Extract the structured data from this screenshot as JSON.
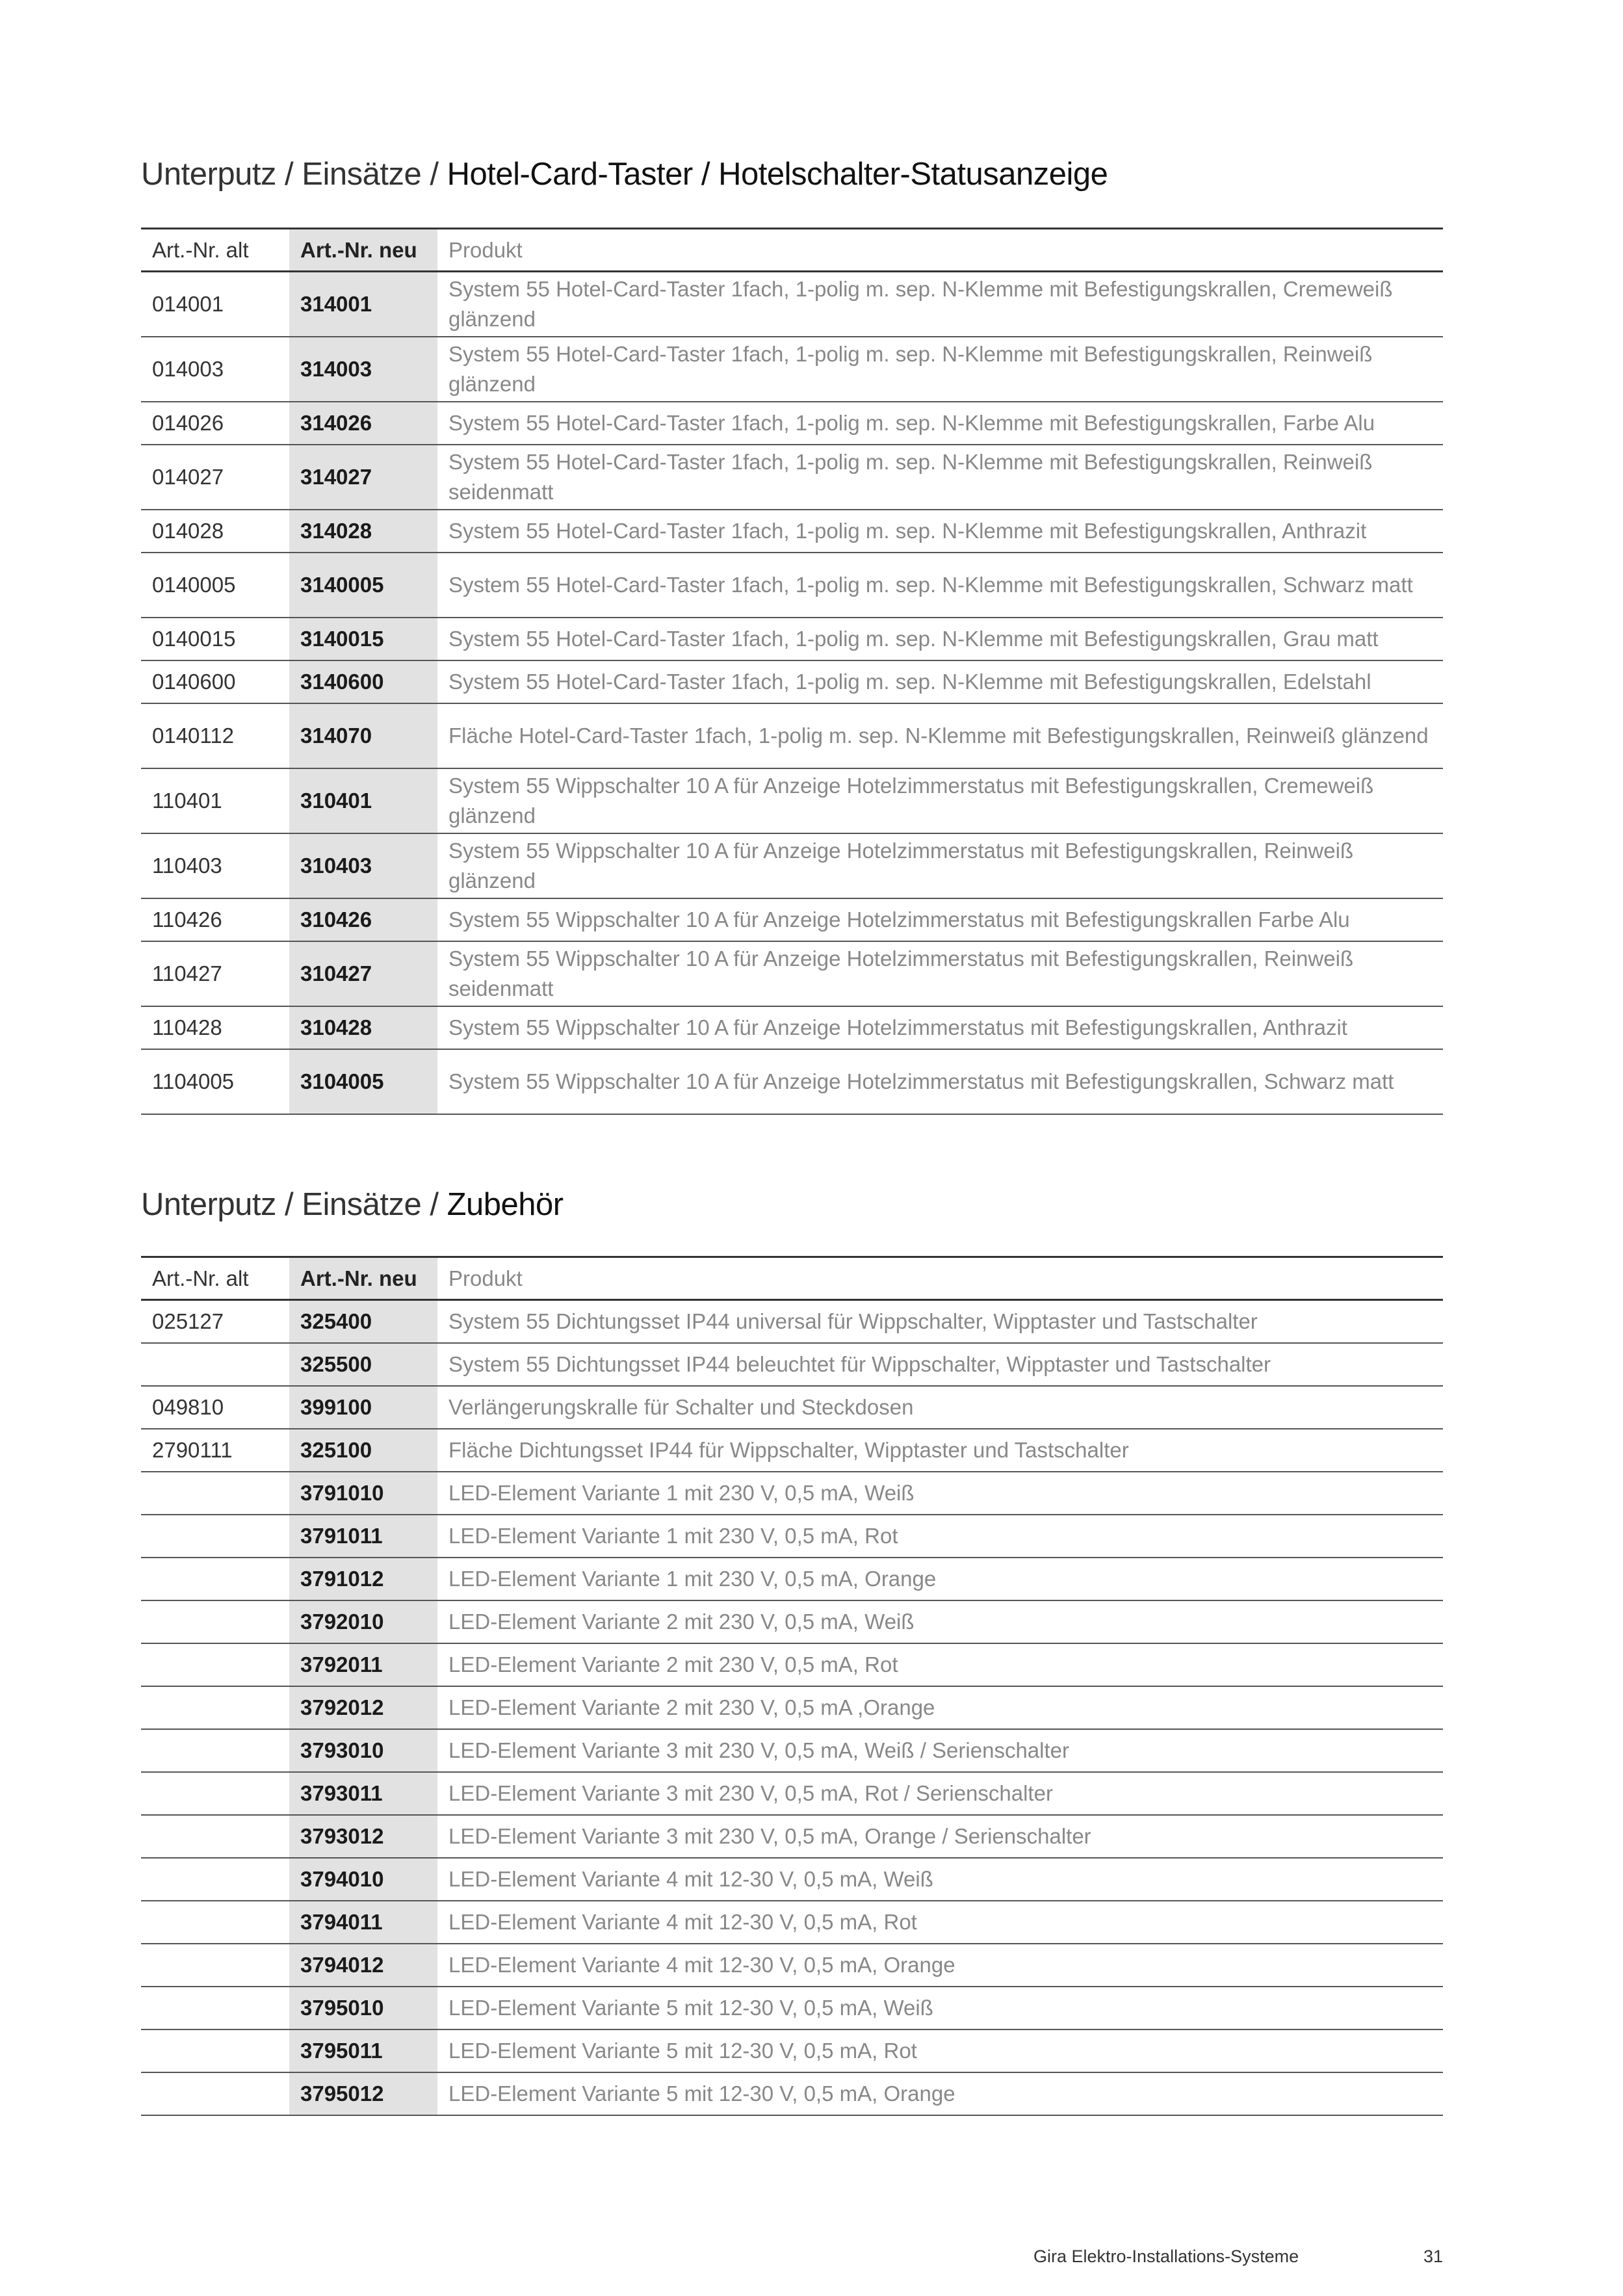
{
  "headers": {
    "alt": "Art.-Nr. alt",
    "neu": "Art.-Nr. neu",
    "produkt": "Produkt"
  },
  "section1": {
    "title_prefix": "Unterputz / Einsätze / ",
    "title_strong": "Hotel-Card-Taster / Hotelschalter-Statusanzeige",
    "rows": [
      {
        "alt": "014001",
        "neu": "314001",
        "produkt": "System 55 Hotel-Card-Taster 1fach, 1-polig m. sep. N-Klemme mit Befestigungskrallen, Cremeweiß glänzend",
        "lines": 2
      },
      {
        "alt": "014003",
        "neu": "314003",
        "produkt": "System 55 Hotel-Card-Taster 1fach, 1-polig m. sep. N-Klemme mit Befestigungskrallen, Reinweiß glänzend",
        "lines": 2
      },
      {
        "alt": "014026",
        "neu": "314026",
        "produkt": "System 55 Hotel-Card-Taster 1fach, 1-polig m. sep. N-Klemme mit Befestigungskrallen, Farbe Alu",
        "lines": 1
      },
      {
        "alt": "014027",
        "neu": "314027",
        "produkt": "System 55 Hotel-Card-Taster 1fach, 1-polig m. sep. N-Klemme mit Befestigungskrallen, Reinweiß seidenmatt",
        "lines": 2
      },
      {
        "alt": "014028",
        "neu": "314028",
        "produkt": "System 55 Hotel-Card-Taster 1fach, 1-polig m. sep. N-Klemme mit Befestigungskrallen, Anthrazit",
        "lines": 1
      },
      {
        "alt": "0140005",
        "neu": "3140005",
        "produkt": "System 55 Hotel-Card-Taster 1fach, 1-polig m. sep. N-Klemme mit Befestigungskrallen, Schwarz matt",
        "lines": 2
      },
      {
        "alt": "0140015",
        "neu": "3140015",
        "produkt": "System 55 Hotel-Card-Taster 1fach, 1-polig m. sep. N-Klemme mit Befestigungskrallen, Grau matt",
        "lines": 1
      },
      {
        "alt": "0140600",
        "neu": "3140600",
        "produkt": "System 55 Hotel-Card-Taster 1fach, 1-polig m. sep. N-Klemme mit Befestigungskrallen, Edelstahl",
        "lines": 1
      },
      {
        "alt": "0140112",
        "neu": "314070",
        "produkt": "Fläche Hotel-Card-Taster 1fach, 1-polig m. sep. N-Klemme mit Befestigungskrallen, Reinweiß glänzend",
        "lines": 2
      },
      {
        "alt": "110401",
        "neu": "310401",
        "produkt": "System 55 Wippschalter 10 A für Anzeige Hotelzimmerstatus mit Befestigungskrallen, Cremeweiß glänzend",
        "lines": 2
      },
      {
        "alt": "110403",
        "neu": "310403",
        "produkt": "System 55 Wippschalter 10 A für Anzeige Hotelzimmerstatus mit Befestigungskrallen, Reinweiß glänzend",
        "lines": 2
      },
      {
        "alt": "110426",
        "neu": "310426",
        "produkt": "System 55 Wippschalter 10 A für Anzeige Hotelzimmerstatus mit Befestigungskrallen Farbe Alu",
        "lines": 1
      },
      {
        "alt": "110427",
        "neu": "310427",
        "produkt": "System 55 Wippschalter 10 A für Anzeige Hotelzimmerstatus mit Befestigungskrallen, Reinweiß seidenmatt",
        "lines": 2
      },
      {
        "alt": "110428",
        "neu": "310428",
        "produkt": "System 55 Wippschalter 10 A für Anzeige Hotelzimmerstatus mit Befestigungskrallen, Anthrazit",
        "lines": 1
      },
      {
        "alt": "1104005",
        "neu": "3104005",
        "produkt": "System 55 Wippschalter 10 A für Anzeige Hotelzimmerstatus mit Befestigungskrallen, Schwarz matt",
        "lines": 2
      }
    ]
  },
  "section2": {
    "title_prefix": "Unterputz / Einsätze / ",
    "title_strong": "Zubehör",
    "rows": [
      {
        "alt": "025127",
        "neu": "325400",
        "produkt": "System 55 Dichtungsset IP44 universal für Wippschalter, Wipptaster und Tastschalter",
        "lines": 1
      },
      {
        "alt": "",
        "neu": "325500",
        "produkt": "System 55 Dichtungsset IP44 beleuchtet für Wippschalter, Wipptaster und Tastschalter",
        "lines": 1
      },
      {
        "alt": "049810",
        "neu": "399100",
        "produkt": "Verlängerungskralle für Schalter und Steckdosen",
        "lines": 1
      },
      {
        "alt": "2790111",
        "neu": "325100",
        "produkt": "Fläche Dichtungsset IP44 für Wippschalter, Wipptaster und Tastschalter",
        "lines": 1
      },
      {
        "alt": "",
        "neu": "3791010",
        "produkt": "LED-Element Variante 1 mit 230 V, 0,5 mA, Weiß",
        "lines": 1
      },
      {
        "alt": "",
        "neu": "3791011",
        "produkt": "LED-Element Variante 1 mit 230 V, 0,5 mA, Rot",
        "lines": 1
      },
      {
        "alt": "",
        "neu": "3791012",
        "produkt": "LED-Element Variante 1 mit 230 V, 0,5 mA, Orange",
        "lines": 1
      },
      {
        "alt": "",
        "neu": "3792010",
        "produkt": "LED-Element Variante 2 mit 230 V, 0,5 mA, Weiß",
        "lines": 1
      },
      {
        "alt": "",
        "neu": "3792011",
        "produkt": "LED-Element Variante 2 mit 230 V, 0,5 mA, Rot",
        "lines": 1
      },
      {
        "alt": "",
        "neu": "3792012",
        "produkt": "LED-Element Variante 2 mit 230 V, 0,5 mA ,Orange",
        "lines": 1
      },
      {
        "alt": "",
        "neu": "3793010",
        "produkt": "LED-Element Variante 3 mit 230 V, 0,5 mA, Weiß / Serienschalter",
        "lines": 1
      },
      {
        "alt": "",
        "neu": "3793011",
        "produkt": "LED-Element Variante 3 mit 230 V, 0,5 mA, Rot / Serienschalter",
        "lines": 1
      },
      {
        "alt": "",
        "neu": "3793012",
        "produkt": "LED-Element Variante 3 mit 230 V, 0,5 mA, Orange / Serienschalter",
        "lines": 1
      },
      {
        "alt": "",
        "neu": "3794010",
        "produkt": "LED-Element Variante 4 mit 12-30 V, 0,5 mA, Weiß",
        "lines": 1
      },
      {
        "alt": "",
        "neu": "3794011",
        "produkt": "LED-Element Variante 4 mit 12-30 V, 0,5 mA, Rot",
        "lines": 1
      },
      {
        "alt": "",
        "neu": "3794012",
        "produkt": "LED-Element Variante 4 mit 12-30 V, 0,5 mA, Orange",
        "lines": 1
      },
      {
        "alt": "",
        "neu": "3795010",
        "produkt": "LED-Element Variante 5 mit 12-30 V, 0,5 mA, Weiß",
        "lines": 1
      },
      {
        "alt": "",
        "neu": "3795011",
        "produkt": "LED-Element Variante 5 mit 12-30 V, 0,5 mA, Rot",
        "lines": 1
      },
      {
        "alt": "",
        "neu": "3795012",
        "produkt": "LED-Element Variante 5 mit 12-30 V, 0,5 mA, Orange",
        "lines": 1
      }
    ]
  },
  "footer": {
    "text": "Gira Elektro-Installations-Systeme",
    "page": "31"
  }
}
